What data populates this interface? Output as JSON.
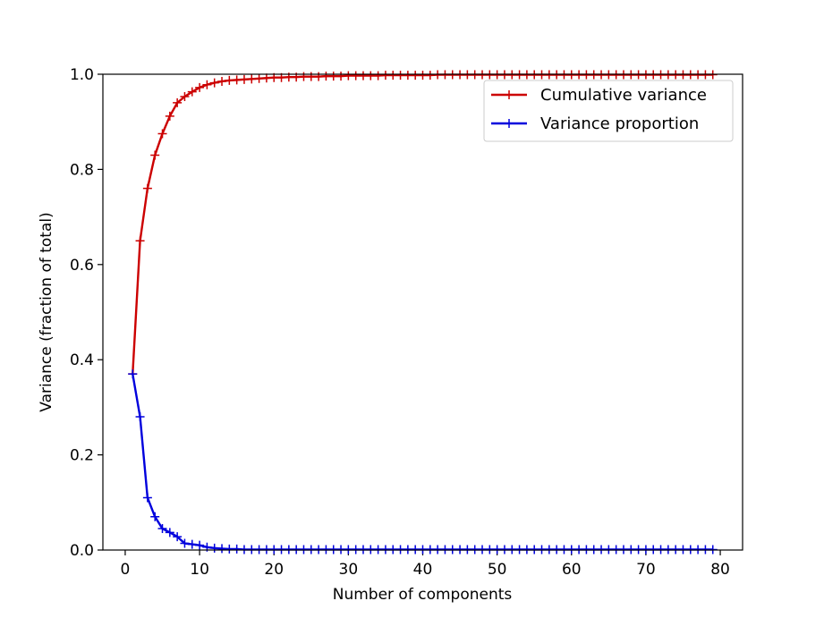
{
  "chart_data": {
    "type": "line",
    "title": "",
    "xlabel": "Number of components",
    "ylabel": "Variance (fraction of total)",
    "xlim": [
      -3.0,
      83.0
    ],
    "ylim": [
      0.0,
      1.0
    ],
    "xticks": [
      "0",
      "10",
      "20",
      "30",
      "40",
      "50",
      "60",
      "70",
      "80"
    ],
    "yticks": [
      "0.0",
      "0.2",
      "0.4",
      "0.6",
      "0.8",
      "1.0"
    ],
    "grid": false,
    "legend_position": "top-right",
    "series": [
      {
        "name": "Cumulative variance",
        "color": "#cc0000",
        "marker": "plus",
        "x": [
          1,
          2,
          3,
          4,
          5,
          6,
          7,
          8,
          9,
          10,
          11,
          12,
          13,
          14,
          15,
          16,
          17,
          18,
          19,
          20,
          21,
          22,
          23,
          24,
          25,
          26,
          27,
          28,
          29,
          30,
          31,
          32,
          33,
          34,
          35,
          36,
          37,
          38,
          39,
          40,
          41,
          42,
          43,
          44,
          45,
          46,
          47,
          48,
          49,
          50,
          51,
          52,
          53,
          54,
          55,
          56,
          57,
          58,
          59,
          60,
          61,
          62,
          63,
          64,
          65,
          66,
          67,
          68,
          69,
          70,
          71,
          72,
          73,
          74,
          75,
          76,
          77,
          78,
          79
        ],
        "values": [
          0.37,
          0.65,
          0.76,
          0.83,
          0.875,
          0.912,
          0.94,
          0.953,
          0.963,
          0.972,
          0.978,
          0.982,
          0.985,
          0.987,
          0.988,
          0.989,
          0.99,
          0.991,
          0.992,
          0.993,
          0.993,
          0.994,
          0.994,
          0.995,
          0.995,
          0.995,
          0.996,
          0.996,
          0.996,
          0.997,
          0.997,
          0.997,
          0.997,
          0.997,
          0.998,
          0.998,
          0.998,
          0.998,
          0.998,
          0.998,
          0.998,
          0.999,
          0.999,
          0.999,
          0.999,
          0.999,
          0.999,
          0.999,
          0.999,
          0.999,
          0.999,
          0.999,
          0.999,
          0.999,
          0.999,
          0.999,
          0.999,
          0.999,
          0.999,
          0.999,
          0.999,
          0.999,
          0.999,
          0.999,
          0.999,
          0.999,
          0.999,
          0.999,
          0.999,
          0.999,
          0.999,
          0.999,
          0.999,
          0.999,
          0.999,
          0.999,
          0.999,
          0.999,
          0.999
        ]
      },
      {
        "name": "Variance proportion",
        "color": "#0000dd",
        "marker": "plus",
        "x": [
          1,
          2,
          3,
          4,
          5,
          6,
          7,
          8,
          9,
          10,
          11,
          12,
          13,
          14,
          15,
          16,
          17,
          18,
          19,
          20,
          21,
          22,
          23,
          24,
          25,
          26,
          27,
          28,
          29,
          30,
          31,
          32,
          33,
          34,
          35,
          36,
          37,
          38,
          39,
          40,
          41,
          42,
          43,
          44,
          45,
          46,
          47,
          48,
          49,
          50,
          51,
          52,
          53,
          54,
          55,
          56,
          57,
          58,
          59,
          60,
          61,
          62,
          63,
          64,
          65,
          66,
          67,
          68,
          69,
          70,
          71,
          72,
          73,
          74,
          75,
          76,
          77,
          78,
          79
        ],
        "values": [
          0.37,
          0.28,
          0.11,
          0.07,
          0.045,
          0.037,
          0.028,
          0.014,
          0.012,
          0.01,
          0.006,
          0.004,
          0.003,
          0.002,
          0.002,
          0.001,
          0.001,
          0.001,
          0.001,
          0.001,
          0.001,
          0.001,
          0.001,
          0.001,
          0.001,
          0.001,
          0.001,
          0.001,
          0.001,
          0.001,
          0.001,
          0.001,
          0.001,
          0.001,
          0.001,
          0.001,
          0.001,
          0.001,
          0.001,
          0.001,
          0.001,
          0.001,
          0.001,
          0.001,
          0.001,
          0.001,
          0.001,
          0.001,
          0.001,
          0.001,
          0.001,
          0.001,
          0.001,
          0.001,
          0.001,
          0.001,
          0.001,
          0.001,
          0.001,
          0.001,
          0.001,
          0.001,
          0.001,
          0.001,
          0.001,
          0.001,
          0.001,
          0.001,
          0.001,
          0.001,
          0.001,
          0.001,
          0.001,
          0.001,
          0.001,
          0.001,
          0.001,
          0.001,
          0.001
        ]
      }
    ]
  }
}
